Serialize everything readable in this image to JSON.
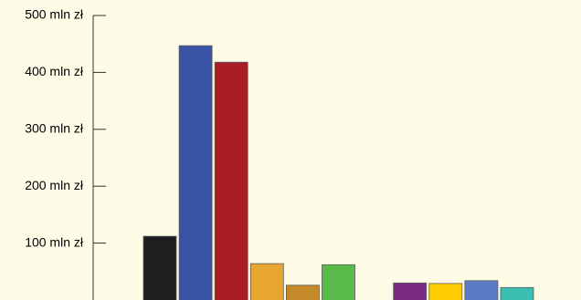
{
  "chart_data": {
    "type": "bar",
    "title": "",
    "xlabel": "",
    "ylabel": "",
    "ylim": [
      0,
      500
    ],
    "y_ticks": [
      {
        "value": 100,
        "label": "100 mln zł"
      },
      {
        "value": 200,
        "label": "200 mln zł"
      },
      {
        "value": 300,
        "label": "300 mln zł"
      },
      {
        "value": 400,
        "label": "400 mln zł"
      },
      {
        "value": 500,
        "label": "500 mln zł"
      }
    ],
    "grid": false,
    "legend": "none",
    "bars": [
      {
        "slot": 0,
        "value": 112,
        "color": "#1e1e1e"
      },
      {
        "slot": 1,
        "value": 447,
        "color": "#3a53a4"
      },
      {
        "slot": 2,
        "value": 418,
        "color": "#a91e24"
      },
      {
        "slot": 3,
        "value": 64,
        "color": "#e8a630"
      },
      {
        "slot": 4,
        "value": 26,
        "color": "#c48a2a"
      },
      {
        "slot": 5,
        "value": 62,
        "color": "#5bbb4a"
      },
      {
        "slot": 7,
        "value": 30,
        "color": "#7b2b84"
      },
      {
        "slot": 8,
        "value": 29,
        "color": "#ffcc00"
      },
      {
        "slot": 9,
        "value": 34,
        "color": "#5b7bc4"
      },
      {
        "slot": 10,
        "value": 22,
        "color": "#3bbfb2"
      }
    ]
  }
}
